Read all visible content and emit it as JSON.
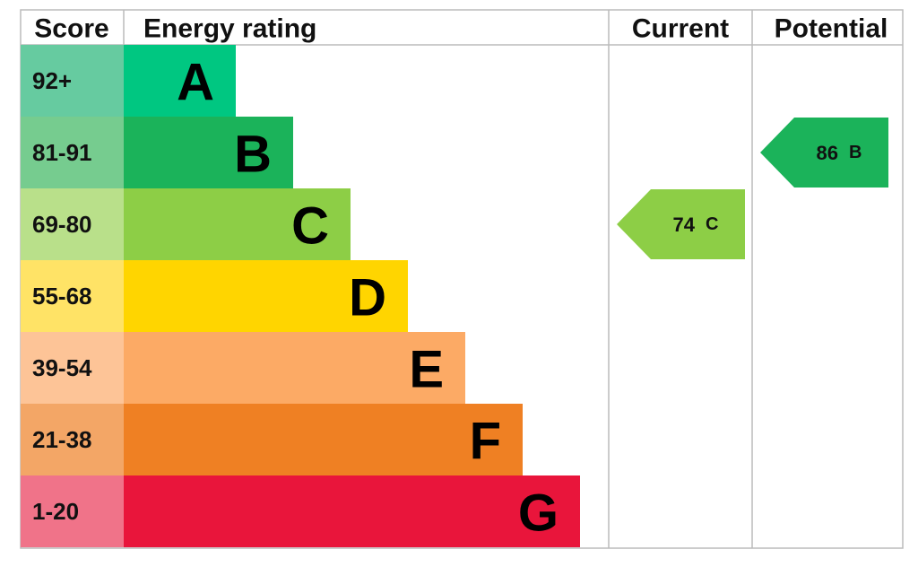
{
  "headers": {
    "score": "Score",
    "rating": "Energy rating",
    "current": "Current",
    "potential": "Potential"
  },
  "bands": [
    {
      "score": "92+",
      "letter": "A",
      "color": "#00c781",
      "score_color": "#66cba0"
    },
    {
      "score": "81-91",
      "letter": "B",
      "color": "#1bb35a",
      "score_color": "#76cc8f"
    },
    {
      "score": "69-80",
      "letter": "C",
      "color": "#8dce46",
      "score_color": "#b9e08a"
    },
    {
      "score": "55-68",
      "letter": "D",
      "color": "#ffd500",
      "score_color": "#ffe366"
    },
    {
      "score": "39-54",
      "letter": "E",
      "color": "#fcaa65",
      "score_color": "#fdc497"
    },
    {
      "score": "21-38",
      "letter": "F",
      "color": "#ef8023",
      "score_color": "#f3a666"
    },
    {
      "score": "1-20",
      "letter": "G",
      "color": "#e9153b",
      "score_color": "#f07389"
    }
  ],
  "current": {
    "value": 74,
    "letter": "C"
  },
  "potential": {
    "value": 86,
    "letter": "B"
  }
}
